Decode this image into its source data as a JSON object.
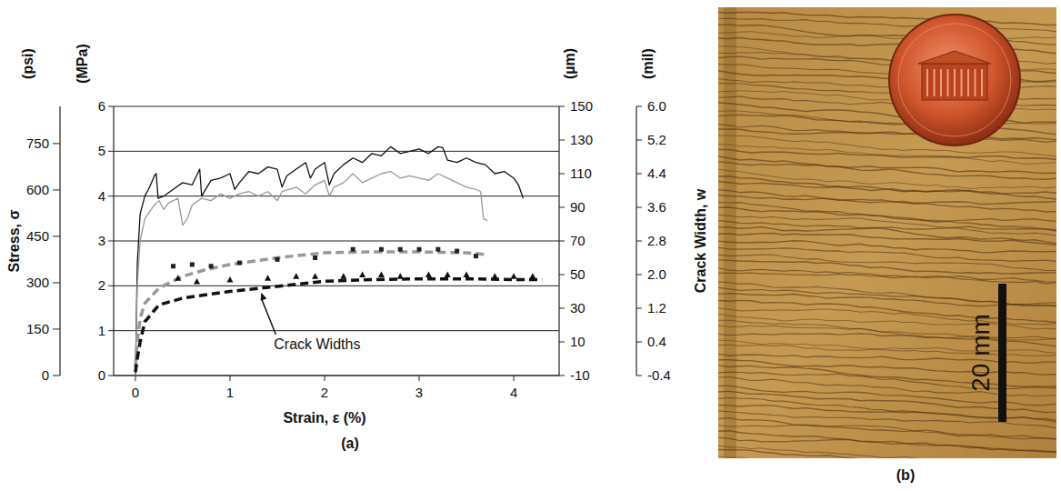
{
  "chart_data": {
    "type": "line",
    "panel_label": "(a)",
    "x_label": "Strain, ε (%)",
    "xlim": [
      -0.23,
      4.48
    ],
    "xticks": [
      0,
      1,
      2,
      3,
      4
    ],
    "y_label": "Stress, σ",
    "y_unit": "(MPa)",
    "ylim": [
      0,
      6
    ],
    "yticks": [
      0,
      1,
      2,
      3,
      4,
      5,
      6
    ],
    "y_outer_unit": "(psi)",
    "y_outer_lim": [
      0,
      870.2
    ],
    "y_outer_ticks": [
      0,
      150,
      300,
      450,
      600,
      750
    ],
    "y2_label": "Crack Width, w",
    "y2_unit": "(µm)",
    "y2lim": [
      -10,
      150
    ],
    "y2ticks": [
      -10,
      10,
      30,
      50,
      70,
      90,
      110,
      130,
      150
    ],
    "y2_outer_unit": "(mil)",
    "y2_outer_lim": [
      -0.4,
      6.0
    ],
    "y2_outer_ticks": [
      -0.4,
      0.4,
      1.2,
      {
        "value": 2,
        "label": "2.0"
      },
      2.8,
      3.6,
      4.4,
      5.2,
      {
        "value": 6,
        "label": "6.0"
      }
    ],
    "grid": true,
    "annotations": [
      {
        "text": "Crack Widths"
      }
    ],
    "series": [
      {
        "type": "line",
        "color": "#111111",
        "line_style": "solid",
        "x": [
          0,
          0.02,
          0.05,
          0.1,
          0.15,
          0.2,
          0.22,
          0.24,
          0.3,
          0.4,
          0.5,
          0.6,
          0.68,
          0.7,
          0.8,
          0.9,
          1.0,
          1.05,
          1.1,
          1.2,
          1.3,
          1.4,
          1.5,
          1.55,
          1.6,
          1.7,
          1.8,
          1.85,
          1.9,
          2.0,
          2.05,
          2.1,
          2.2,
          2.3,
          2.4,
          2.5,
          2.6,
          2.7,
          2.8,
          2.9,
          3.0,
          3.1,
          3.2,
          3.25,
          3.3,
          3.4,
          3.5,
          3.6,
          3.7,
          3.8,
          3.9,
          4.0,
          4.05,
          4.1
        ],
        "values": [
          0,
          2.5,
          3.6,
          4.0,
          4.2,
          4.45,
          4.5,
          3.95,
          4.0,
          4.15,
          4.3,
          4.25,
          4.6,
          4.0,
          4.35,
          4.4,
          4.5,
          4.15,
          4.3,
          4.55,
          4.5,
          4.65,
          4.6,
          4.2,
          4.45,
          4.6,
          4.75,
          4.4,
          4.6,
          4.75,
          4.25,
          4.5,
          4.7,
          4.85,
          4.75,
          4.95,
          4.9,
          5.1,
          4.95,
          5.0,
          5.05,
          4.95,
          5.1,
          5.08,
          4.8,
          4.75,
          4.85,
          4.75,
          4.7,
          4.5,
          4.55,
          4.4,
          4.25,
          3.95
        ]
      },
      {
        "type": "line",
        "color": "#999999",
        "line_style": "solid",
        "x": [
          0,
          0.02,
          0.05,
          0.1,
          0.15,
          0.2,
          0.25,
          0.3,
          0.35,
          0.45,
          0.5,
          0.55,
          0.6,
          0.7,
          0.8,
          0.9,
          1.0,
          1.1,
          1.2,
          1.3,
          1.4,
          1.5,
          1.55,
          1.7,
          1.8,
          1.9,
          2.0,
          2.05,
          2.1,
          2.2,
          2.3,
          2.4,
          2.5,
          2.6,
          2.7,
          2.8,
          2.9,
          3.0,
          3.1,
          3.2,
          3.3,
          3.4,
          3.5,
          3.6,
          3.65,
          3.68,
          3.72
        ],
        "values": [
          0,
          2.0,
          3.0,
          3.5,
          3.65,
          3.8,
          3.9,
          3.7,
          3.85,
          3.95,
          3.35,
          3.5,
          3.8,
          3.95,
          3.9,
          4.05,
          3.95,
          4.05,
          4.1,
          4.0,
          4.1,
          3.9,
          4.1,
          4.2,
          4.05,
          4.25,
          4.35,
          4.0,
          4.2,
          4.3,
          4.5,
          4.3,
          4.4,
          4.5,
          4.55,
          4.4,
          4.45,
          4.4,
          4.35,
          4.5,
          4.4,
          4.3,
          4.2,
          4.15,
          4.1,
          3.5,
          3.45
        ]
      },
      {
        "type": "line",
        "axis": "y2",
        "color": "#999999",
        "line_style": "dashed",
        "x": [
          0,
          0.02,
          0.05,
          0.1,
          0.25,
          0.5,
          0.75,
          1.0,
          1.5,
          2.0,
          2.5,
          3.0,
          3.5,
          3.7
        ],
        "values": [
          -5,
          10,
          24,
          33,
          42,
          49,
          53,
          56,
          60,
          63,
          63.5,
          63.5,
          63,
          62
        ]
      },
      {
        "type": "line",
        "axis": "y2",
        "color": "#111111",
        "line_style": "dashed",
        "x": [
          0,
          0.02,
          0.05,
          0.1,
          0.25,
          0.5,
          1.0,
          1.5,
          2.0,
          2.5,
          3.0,
          3.5,
          4.0,
          4.3
        ],
        "values": [
          -8,
          0,
          10,
          22,
          32,
          36,
          40,
          43,
          46,
          47,
          47.5,
          47.5,
          47,
          47
        ]
      },
      {
        "type": "scatter",
        "axis": "y2",
        "color": "#222222",
        "marker": "square",
        "x": [
          0.4,
          0.6,
          0.8,
          1.1,
          1.5,
          1.9,
          2.3,
          2.6,
          2.8,
          3.0,
          3.2,
          3.4,
          3.6
        ],
        "values": [
          55,
          56,
          55,
          57,
          59,
          60,
          65,
          65,
          65,
          65,
          65,
          64,
          61
        ]
      },
      {
        "type": "scatter",
        "axis": "y2",
        "color": "#111111",
        "marker": "triangle",
        "x": [
          0.45,
          0.65,
          1.0,
          1.4,
          1.7,
          1.9,
          2.2,
          2.4,
          2.6,
          2.8,
          3.1,
          3.3,
          3.5,
          3.8,
          4.0,
          4.2
        ],
        "values": [
          48,
          46,
          47,
          48,
          49,
          49,
          49,
          50,
          50,
          49,
          50,
          50,
          50,
          49,
          49,
          49
        ]
      }
    ]
  },
  "panel_b": {
    "label": "(b)",
    "scale_bar_label": "20 mm"
  }
}
